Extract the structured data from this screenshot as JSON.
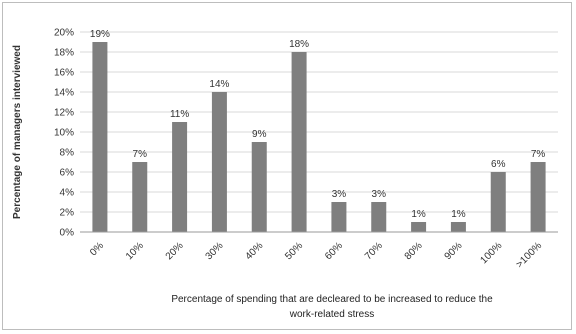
{
  "chart_data": {
    "type": "bar",
    "title": "",
    "categories": [
      "0%",
      "10%",
      "20%",
      "30%",
      "40%",
      "50%",
      "60%",
      "70%",
      "80%",
      "90%",
      "100%",
      ">100%"
    ],
    "values": [
      19,
      7,
      11,
      14,
      9,
      18,
      3,
      3,
      1,
      1,
      6,
      7
    ],
    "data_labels": [
      "19%",
      "7%",
      "11%",
      "14%",
      "9%",
      "18%",
      "3%",
      "3%",
      "1%",
      "1%",
      "6%",
      "7%"
    ],
    "ylabel": "Percentage of managers interviewed",
    "xlabel_lines": [
      "Percentage of spending that are decleared to  be increased to reduce the",
      "work-related stress"
    ],
    "ylim": [
      0,
      20
    ],
    "yticks": [
      "0%",
      "2%",
      "4%",
      "6%",
      "8%",
      "10%",
      "12%",
      "14%",
      "16%",
      "18%",
      "20%"
    ],
    "grid": true,
    "legend": "none",
    "bar_color": "#7f7f7f"
  }
}
